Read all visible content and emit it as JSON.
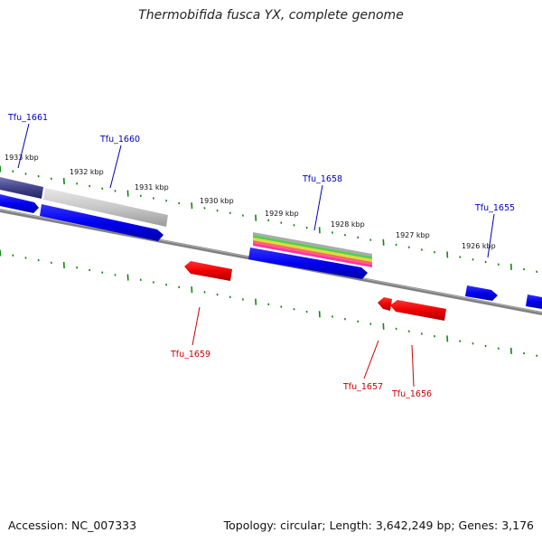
{
  "title": "Thermobifida fusca YX, complete genome",
  "footer": {
    "accession": "Accession: NC_007333",
    "stats": "Topology: circular; Length: 3,642,249 bp; Genes: 3,176"
  },
  "colors": {
    "cds_forward": "#0000ee",
    "cds_reverse": "#ee0000",
    "label_forward": "#0000bb",
    "label_reverse": "#cc0000",
    "tick": "#118811",
    "backbone": "#808080"
  },
  "ticks": [
    {
      "label": "1933 kbp"
    },
    {
      "label": "1932 kbp"
    },
    {
      "label": "1931 kbp"
    },
    {
      "label": "1930 kbp"
    },
    {
      "label": "1929 kbp"
    },
    {
      "label": "1928 kbp"
    },
    {
      "label": "1927 kbp"
    },
    {
      "label": "1926 kbp"
    }
  ],
  "genes": [
    {
      "name": "Tfu_1661",
      "strand": "+"
    },
    {
      "name": "Tfu_1660",
      "strand": "+"
    },
    {
      "name": "Tfu_1659",
      "strand": "-"
    },
    {
      "name": "Tfu_1658",
      "strand": "+"
    },
    {
      "name": "Tfu_1657",
      "strand": "-"
    },
    {
      "name": "Tfu_1656",
      "strand": "-"
    },
    {
      "name": "Tfu_1655",
      "strand": "+"
    }
  ]
}
